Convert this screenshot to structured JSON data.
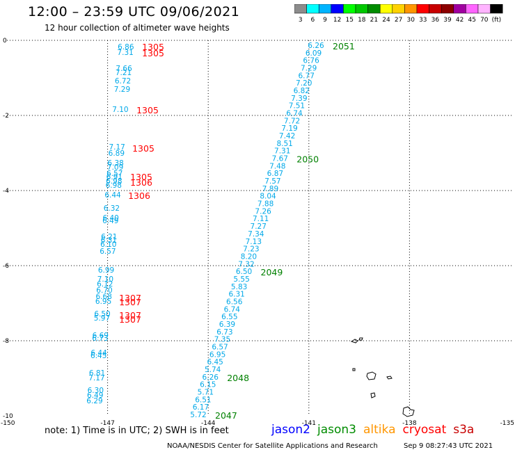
{
  "header": {
    "title": "12:00 – 23:59 UTC 09/06/2021",
    "subtitle": "12 hour collection of altimeter wave heights"
  },
  "legend": {
    "swatches": [
      {
        "label": "3",
        "color": "#8c8c8c"
      },
      {
        "label": "6",
        "color": "#00ffff"
      },
      {
        "label": "9",
        "color": "#00b4ff"
      },
      {
        "label": "12",
        "color": "#0000ff"
      },
      {
        "label": "15",
        "color": "#00ff00"
      },
      {
        "label": "18",
        "color": "#00c800"
      },
      {
        "label": "21",
        "color": "#008c00"
      },
      {
        "label": "24",
        "color": "#ffff00"
      },
      {
        "label": "27",
        "color": "#ffd200"
      },
      {
        "label": "30",
        "color": "#ff9600"
      },
      {
        "label": "33",
        "color": "#ff0000"
      },
      {
        "label": "36",
        "color": "#c80000"
      },
      {
        "label": "39",
        "color": "#8c0000"
      },
      {
        "label": "42",
        "color": "#a000a0"
      },
      {
        "label": "45",
        "color": "#ff64ff"
      },
      {
        "label": "70",
        "color": "#ffb4ff"
      },
      {
        "label": "(ft)",
        "color": "#000000"
      }
    ]
  },
  "axes": {
    "x_ticks": [
      "-150",
      "-147",
      "-144",
      "-141",
      "-138",
      "-135"
    ],
    "y_ticks": [
      "0",
      "-2",
      "-4",
      "-6",
      "-8",
      "-10"
    ]
  },
  "colors": {
    "swh": "#00a8e8",
    "west_track_time": "#ff0000",
    "east_track_time": "#008000",
    "grid": "#000000"
  },
  "tracks": {
    "west": {
      "swh": [
        "6.86",
        "7.31",
        "7.66",
        "7.21",
        "6.72",
        "7.29",
        "7.10",
        "7.17",
        "6.89",
        "6.38",
        "7.09",
        "6.57",
        "6.91",
        "6.98",
        "6.98",
        "6.44",
        "6.32",
        "6.40",
        "6.49",
        "6.21",
        "6.31",
        "6.10",
        "6.57",
        "6.99",
        "7.10",
        "6.12",
        "6.70",
        "6.68",
        "6.95",
        "6.50",
        "5.97",
        "6.69",
        "6.73",
        "6.44",
        "6.45",
        "6.81",
        "7.17",
        "6.30",
        "6.49",
        "6.29"
      ],
      "times": [
        "1305",
        "1305",
        "1305",
        "1305",
        "1305",
        "1306",
        "1306",
        "1307",
        "1307",
        "1307",
        "1307"
      ]
    },
    "east": {
      "swh": [
        "6.26",
        "6.09",
        "6.76",
        "7.29",
        "6.77",
        "7.20",
        "6.82",
        "7.39",
        "7.51",
        "6.74",
        "7.72",
        "7.19",
        "7.42",
        "8.51",
        "7.31",
        "7.67",
        "7.48",
        "6.87",
        "7.57",
        "7.89",
        "8.04",
        "7.88",
        "7.26",
        "7.11",
        "7.27",
        "7.34",
        "7.13",
        "7.23",
        "8.20",
        "7.32",
        "6.50",
        "5.55",
        "5.83",
        "6.31",
        "6.56",
        "6.74",
        "6.55",
        "6.39",
        "6.73",
        "7.35",
        "6.57",
        "6.95",
        "6.45",
        "5.74",
        "6.26",
        "6.15",
        "5.71",
        "6.51",
        "6.17",
        "5.72"
      ],
      "times": [
        "2051",
        "2050",
        "2049",
        "2048",
        "2047"
      ]
    }
  },
  "footer": {
    "note": "note:  1) Time is in UTC;  2) SWH is in feet",
    "credit": "NOAA/NESDIS Center for Satellite Applications and Research",
    "timestamp": "Sep  9 08:27:43 UTC 2021"
  },
  "satellites": [
    {
      "name": "jason2",
      "color": "#0000ff"
    },
    {
      "name": "jason3",
      "color": "#008c00"
    },
    {
      "name": "altika",
      "color": "#ff9600"
    },
    {
      "name": "cryosat",
      "color": "#ff0000"
    },
    {
      "name": "s3a",
      "color": "#c80000"
    }
  ]
}
